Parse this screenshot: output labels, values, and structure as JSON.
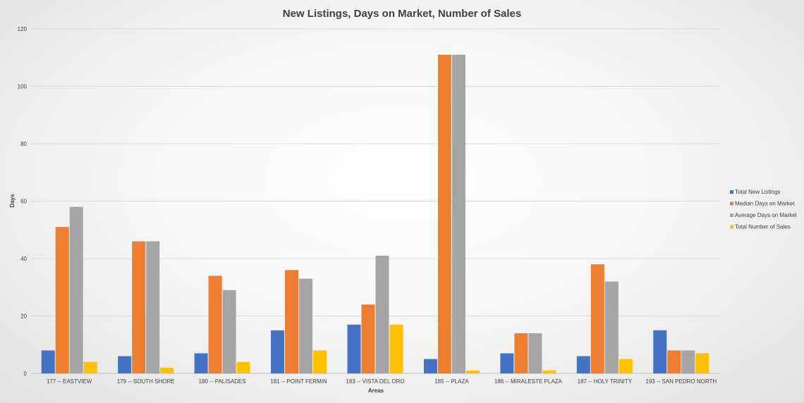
{
  "chart_data": {
    "type": "bar",
    "title": "New Listings, Days on Market, Number of Sales",
    "xlabel": "Areas",
    "ylabel": "Days",
    "ylim": [
      0,
      120
    ],
    "yticks": [
      0,
      20,
      40,
      60,
      80,
      100,
      120
    ],
    "grid": true,
    "legend_position": "right",
    "categories": [
      "177 -- EASTVIEW",
      "179 -- SOUTH SHORE",
      "180 -- PALISADES",
      "181 -- POINT FERMIN",
      "183 -- VISTA DEL ORO",
      "185 -- PLAZA",
      "186 -- MIRALESTE PLAZA",
      "187 -- HOLY TRINITY",
      "193 -- SAN PEDRO NORTH"
    ],
    "series": [
      {
        "name": "Total New Listings",
        "color": "#4472C4",
        "values": [
          8,
          6,
          7,
          15,
          17,
          5,
          7,
          6,
          15
        ]
      },
      {
        "name": "Median Days on Market",
        "color": "#ED7D31",
        "values": [
          51,
          46,
          34,
          36,
          24,
          111,
          14,
          38,
          8
        ]
      },
      {
        "name": "Average Days on Market",
        "color": "#A5A5A5",
        "values": [
          58,
          46,
          29,
          33,
          41,
          111,
          14,
          32,
          8
        ]
      },
      {
        "name": "Total Number of Sales",
        "color": "#FFC000",
        "values": [
          4,
          2,
          4,
          8,
          17,
          1,
          1,
          5,
          7
        ]
      }
    ]
  }
}
